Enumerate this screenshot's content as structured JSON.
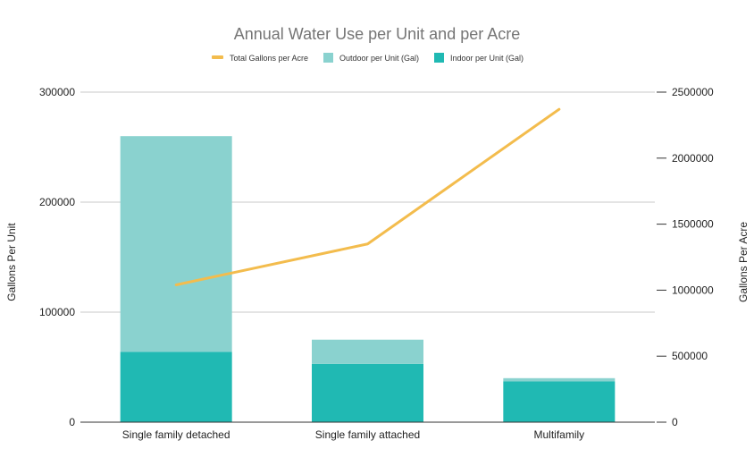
{
  "chart_data": {
    "type": "bar",
    "title": "Annual Water Use per Unit and per Acre",
    "categories": [
      "Single family detached",
      "Single family attached",
      "Multifamily"
    ],
    "series": [
      {
        "name": "Indoor per Unit (Gal)",
        "kind": "bar",
        "axis": "left",
        "color": "#20b9b3",
        "values": [
          64000,
          53000,
          37000
        ]
      },
      {
        "name": "Outdoor per Unit (Gal)",
        "kind": "bar",
        "axis": "left",
        "color": "#8ad2cf",
        "values": [
          196000,
          22000,
          3000
        ]
      },
      {
        "name": "Total Gallons per Acre",
        "kind": "line",
        "axis": "right",
        "color": "#f3bc4d",
        "values": [
          1040000,
          1350000,
          2370000
        ]
      }
    ],
    "stacked": true,
    "legend_order": [
      "Total Gallons per Acre",
      "Outdoor per Unit (Gal)",
      "Indoor per Unit (Gal)"
    ],
    "legend_position": "top-center",
    "ylabel": "Gallons Per Unit",
    "y2label": "Gallons Per Acre",
    "ylim": [
      0,
      300000
    ],
    "y2lim": [
      0,
      2500000
    ],
    "yticks": [
      "0",
      "100000",
      "200000",
      "300000"
    ],
    "y2ticks": [
      "0",
      "500000",
      "1000000",
      "1500000",
      "2000000",
      "2500000"
    ],
    "grid": true
  }
}
